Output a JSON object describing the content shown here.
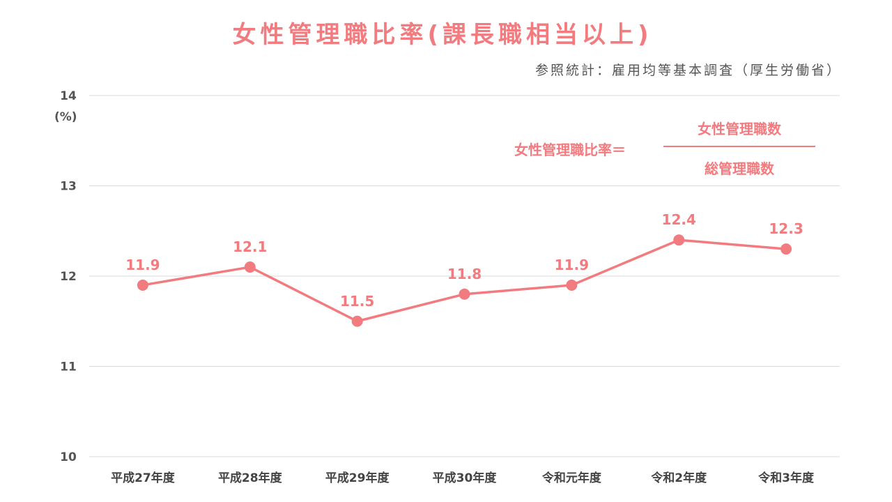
{
  "title": "女性管理職比率(課長職相当以上)",
  "source": "参照統計：雇用均等基本調査（厚生労働省）",
  "formula": {
    "label": "女性管理職比率＝",
    "numerator": "女性管理職数",
    "denominator": "総管理職数"
  },
  "chart_data": {
    "type": "line",
    "categories": [
      "平成27年度",
      "平成28年度",
      "平成29年度",
      "平成30年度",
      "令和元年度",
      "令和2年度",
      "令和3年度"
    ],
    "values": [
      11.9,
      12.1,
      11.5,
      11.8,
      11.9,
      12.4,
      12.3
    ],
    "value_labels": [
      "11.9",
      "12.1",
      "11.5",
      "11.8",
      "11.9",
      "12.4",
      "12.3"
    ],
    "ylabel": "(%)",
    "ylim": [
      10,
      14
    ],
    "yticks": [
      "10",
      "11",
      "12",
      "13",
      "14"
    ],
    "grid": true,
    "color": "#f27b7f"
  }
}
